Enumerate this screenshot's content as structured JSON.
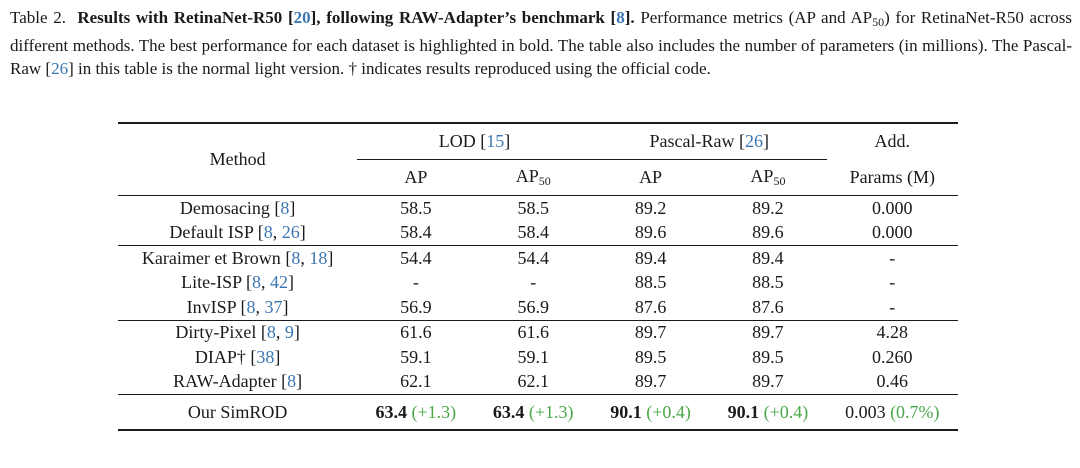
{
  "caption": {
    "label": "Table 2.",
    "bold_text": "Results with RetinaNet-R50 [20], following RAW-Adapter’s benchmark [8].",
    "bold_parts": [
      "Results with RetinaNet-R50 [",
      "20",
      "], following RAW-Adapter’s benchmark [",
      "8",
      "]."
    ],
    "body": "Performance metrics (AP and AP50) for RetinaNet-R50 across different methods. The best performance for each dataset is highlighted in bold. The table also includes the number of parameters (in millions). The Pascal-Raw [26] in this table is the normal light version. † indicates results reproduced using the official code.",
    "body_parts": [
      "Performance metrics (AP and AP",
      "50",
      ") for RetinaNet-R50 across different methods. The best performance for each dataset is highlighted in bold. The table also includes the number of parameters (in millions). The Pascal-Raw [",
      "26",
      "] in this table is the normal light version. † indicates results reproduced using the official code."
    ]
  },
  "header": {
    "method": "Method",
    "lod": "LOD",
    "lod_cite": "15",
    "pascal": "Pascal-Raw",
    "pascal_cite": "26",
    "add": "Add.",
    "params": "Params (M)",
    "ap": "AP",
    "ap50_base": "AP",
    "ap50_sub": "50"
  },
  "groups": [
    [
      {
        "name": "Demosacing",
        "cites": [
          "8"
        ],
        "lod_ap": "58.5",
        "lod_ap50": "58.5",
        "pr_ap": "89.2",
        "pr_ap50": "89.2",
        "params": "0.000"
      },
      {
        "name": "Default ISP",
        "cites": [
          "8",
          "26"
        ],
        "lod_ap": "58.4",
        "lod_ap50": "58.4",
        "pr_ap": "89.6",
        "pr_ap50": "89.6",
        "params": "0.000"
      }
    ],
    [
      {
        "name": "Karaimer et Brown",
        "cites": [
          "8",
          "18"
        ],
        "lod_ap": "54.4",
        "lod_ap50": "54.4",
        "pr_ap": "89.4",
        "pr_ap50": "89.4",
        "params": "-"
      },
      {
        "name": "Lite-ISP",
        "cites": [
          "8",
          "42"
        ],
        "lod_ap": "-",
        "lod_ap50": "-",
        "pr_ap": "88.5",
        "pr_ap50": "88.5",
        "params": "-"
      },
      {
        "name": "InvISP",
        "cites": [
          "8",
          "37"
        ],
        "lod_ap": "56.9",
        "lod_ap50": "56.9",
        "pr_ap": "87.6",
        "pr_ap50": "87.6",
        "params": "-"
      }
    ],
    [
      {
        "name": "Dirty-Pixel",
        "cites": [
          "8",
          "9"
        ],
        "lod_ap": "61.6",
        "lod_ap50": "61.6",
        "pr_ap": "89.7",
        "pr_ap50": "89.7",
        "params": "4.28"
      },
      {
        "name": "DIAP†",
        "cites": [
          "38"
        ],
        "lod_ap": "59.1",
        "lod_ap50": "59.1",
        "pr_ap": "89.5",
        "pr_ap50": "89.5",
        "params": "0.260"
      },
      {
        "name": "RAW-Adapter",
        "cites": [
          "8"
        ],
        "lod_ap": "62.1",
        "lod_ap50": "62.1",
        "pr_ap": "89.7",
        "pr_ap50": "89.7",
        "params": "0.46"
      }
    ]
  ],
  "ours": {
    "name": "Our SimROD",
    "lod_ap": "63.4",
    "lod_ap_delta": "(+1.3)",
    "lod_ap50": "63.4",
    "lod_ap50_delta": "(+1.3)",
    "pr_ap": "90.1",
    "pr_ap_delta": "(+0.4)",
    "pr_ap50": "90.1",
    "pr_ap50_delta": "(+0.4)",
    "params": "0.003",
    "params_delta": "(0.7%)"
  },
  "colors": {
    "cite": "#3b76b3",
    "improvement": "#4aa84a",
    "text": "#1a1a1a"
  }
}
